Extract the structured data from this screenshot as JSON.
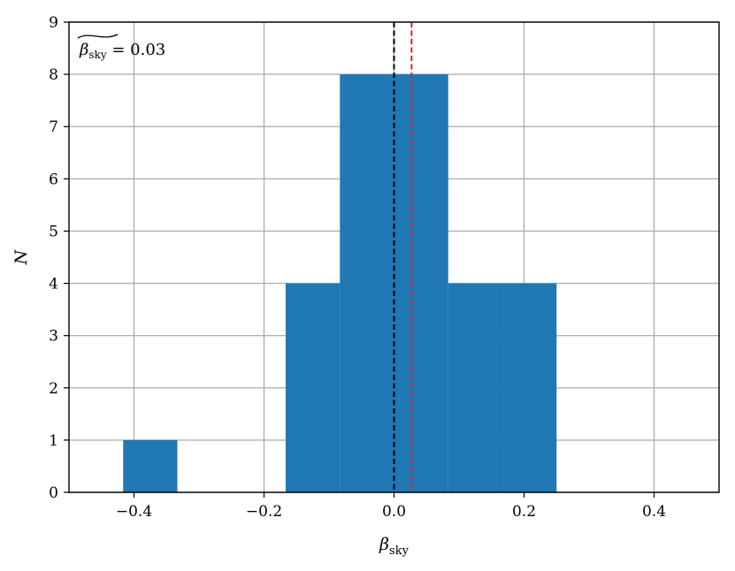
{
  "chart_data": {
    "type": "bar",
    "title": "",
    "xlabel": "β_sky",
    "ylabel": "N",
    "xlim": [
      -0.5,
      0.5
    ],
    "ylim": [
      0,
      9
    ],
    "xticks": [
      -0.4,
      -0.2,
      0.0,
      0.2,
      0.4
    ],
    "xtick_labels": [
      "−0.4",
      "−0.2",
      "0.0",
      "0.2",
      "0.4"
    ],
    "yticks": [
      0,
      1,
      2,
      3,
      4,
      5,
      6,
      7,
      8,
      9
    ],
    "ytick_labels": [
      "0",
      "1",
      "2",
      "3",
      "4",
      "5",
      "6",
      "7",
      "8",
      "9"
    ],
    "grid": true,
    "bar_color": "#1f77b4",
    "bins": [
      {
        "x0": -0.4167,
        "x1": -0.3333,
        "count": 1
      },
      {
        "x0": -0.3333,
        "x1": -0.25,
        "count": 0
      },
      {
        "x0": -0.25,
        "x1": -0.1667,
        "count": 0
      },
      {
        "x0": -0.1667,
        "x1": -0.0833,
        "count": 4
      },
      {
        "x0": -0.0833,
        "x1": 0.0,
        "count": 8
      },
      {
        "x0": 0.0,
        "x1": 0.0833,
        "count": 8
      },
      {
        "x0": 0.0833,
        "x1": 0.1667,
        "count": 4
      },
      {
        "x0": 0.1667,
        "x1": 0.25,
        "count": 4
      }
    ],
    "vlines": [
      {
        "x": 0.0,
        "color": "#000000",
        "style": "dashed"
      },
      {
        "x": 0.027,
        "color": "#d62728",
        "style": "dashed"
      }
    ],
    "annotation": {
      "symbol": "β",
      "subscript": "sky",
      "text": " = 0.03",
      "position": "top-left"
    }
  }
}
